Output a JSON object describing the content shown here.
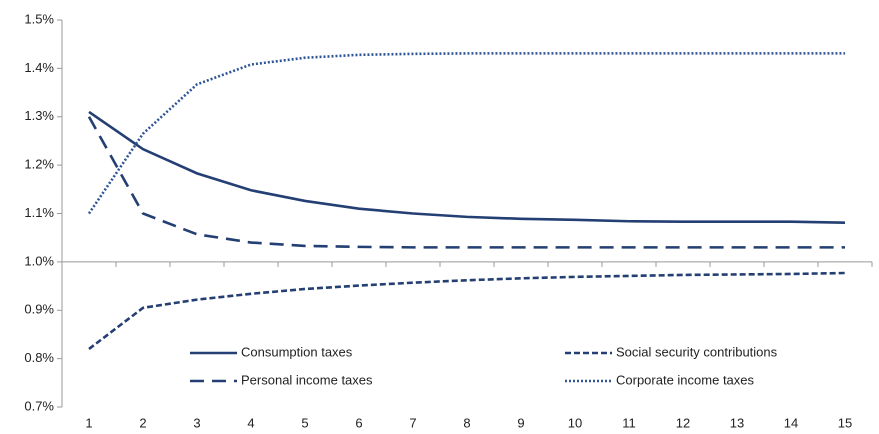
{
  "chart_data": {
    "type": "line",
    "categories": [
      "1",
      "2",
      "3",
      "4",
      "5",
      "6",
      "7",
      "8",
      "9",
      "10",
      "11",
      "12",
      "13",
      "14",
      "15"
    ],
    "series": [
      {
        "name": "Consumption taxes",
        "color": "#243f73",
        "style": "solid",
        "values": [
          1.31,
          1.233,
          1.183,
          1.148,
          1.126,
          1.11,
          1.1,
          1.093,
          1.089,
          1.087,
          1.084,
          1.083,
          1.083,
          1.083,
          1.081
        ]
      },
      {
        "name": "Personal income taxes",
        "color": "#243f73",
        "style": "long-dash",
        "values": [
          1.3,
          1.1,
          1.057,
          1.04,
          1.033,
          1.031,
          1.03,
          1.03,
          1.03,
          1.03,
          1.03,
          1.03,
          1.03,
          1.03,
          1.03
        ]
      },
      {
        "name": "Social security contributions",
        "color": "#243f73",
        "style": "short-dash",
        "values": [
          0.82,
          0.905,
          0.922,
          0.934,
          0.944,
          0.951,
          0.957,
          0.962,
          0.966,
          0.969,
          0.971,
          0.973,
          0.974,
          0.975,
          0.977
        ]
      },
      {
        "name": "Corporate income taxes",
        "color": "#2e5597",
        "style": "dotted",
        "values": [
          1.1,
          1.265,
          1.367,
          1.408,
          1.422,
          1.428,
          1.43,
          1.431,
          1.431,
          1.431,
          1.431,
          1.431,
          1.431,
          1.431,
          1.431
        ]
      }
    ],
    "ylim": [
      0.7,
      1.5
    ],
    "yticks": [
      {
        "value": 0.7,
        "label": "0.7%"
      },
      {
        "value": 0.8,
        "label": "0.8%"
      },
      {
        "value": 0.9,
        "label": "0.9%"
      },
      {
        "value": 1.0,
        "label": "1.0%"
      },
      {
        "value": 1.1,
        "label": "1.1%"
      },
      {
        "value": 1.2,
        "label": "1.2%"
      },
      {
        "value": 1.3,
        "label": "1.3%"
      },
      {
        "value": 1.4,
        "label": "1.4%"
      },
      {
        "value": 1.5,
        "label": "1.5%"
      }
    ],
    "x_axis_crosses": 1.0,
    "grid": false
  }
}
